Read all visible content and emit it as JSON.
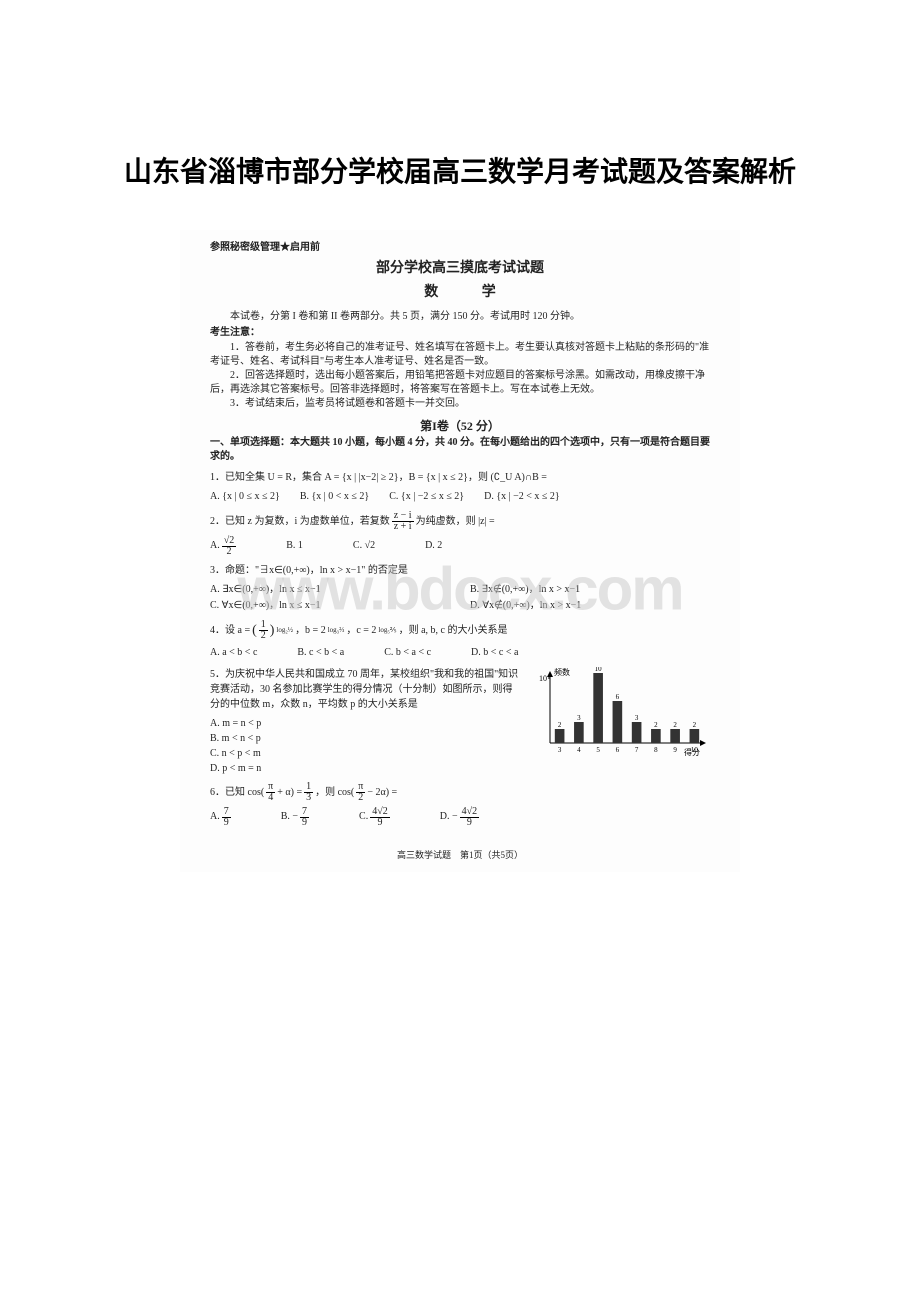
{
  "page_title": "山东省淄博市部分学校届高三数学月考试题及答案解析",
  "watermark": "www.bdocx.com",
  "exam": {
    "secret": "参照秘密级管理★启用前",
    "title": "部分学校高三摸底考试试题",
    "subject": "数  学",
    "intro": "本试卷，分第 I 卷和第 II 卷两部分。共 5 页，满分 150 分。考试用时 120 分钟。",
    "notice_title": "考生注意：",
    "notices": [
      "1．答卷前，考生务必将自己的准考证号、姓名填写在答题卡上。考生要认真核对答题卡上粘贴的条形码的\"准考证号、姓名、考试科目\"与考生本人准考证号、姓名是否一致。",
      "2．回答选择题时，选出每小题答案后，用铅笔把答题卡对应题目的答案标号涂黑。如需改动，用橡皮擦干净后，再选涂其它答案标号。回答非选择题时，将答案写在答题卡上。写在本试卷上无效。",
      "3．考试结束后，监考员将试题卷和答题卡一并交回。"
    ],
    "section1_title": "第I卷（52 分）",
    "section1_desc": "一、单项选择题：本大题共 10 小题，每小题 4 分，共 40 分。在每小题给出的四个选项中，只有一项是符合题目要求的。",
    "q1": {
      "text": "1．已知全集 U = R，集合 A = {x | |x−2| ≥ 2}，B = {x | x ≤ 2}，则 (∁_U A)∩B =",
      "opts": [
        "A. {x | 0 ≤ x ≤ 2}",
        "B. {x | 0 < x ≤ 2}",
        "C. {x | −2 ≤ x ≤ 2}",
        "D. {x | −2 < x ≤ 2}"
      ]
    },
    "q2": {
      "text": "2．已知 z 为复数，i 为虚数单位，若复数",
      "text_suffix": "为纯虚数，则 |z| =",
      "frac_num": "z − i",
      "frac_den": "z + i",
      "opts_a": "A.",
      "a_num": "√2",
      "a_den": "2",
      "opts_b": "B. 1",
      "opts_c": "C. √2",
      "opts_d": "D. 2"
    },
    "q3": {
      "text": "3．命题：\"∃x∈(0,+∞)，ln x > x−1\" 的否定是",
      "opts": [
        "A. ∃x∈(0,+∞)，ln x ≤ x−1",
        "B. ∃x∉(0,+∞)，ln x > x−1",
        "C. ∀x∈(0,+∞)，ln x ≤ x−1",
        "D. ∀x∉(0,+∞)，ln x > x−1"
      ]
    },
    "q4": {
      "text_pre": "4．设 a =",
      "a_base_num": "1",
      "a_base_den": "2",
      "a_exp": "log₂½",
      "text_b": "，b = 2",
      "b_exp": "log₃⅔",
      "text_c": "，c = 2",
      "c_exp": "log₅⅖",
      "text_suffix": "，则 a, b, c 的大小关系是",
      "opts": [
        "A. a < b < c",
        "B. c < b < a",
        "C. b < a < c",
        "D. b < c < a"
      ]
    },
    "q5": {
      "text": "5．为庆祝中华人民共和国成立 70 周年，某校组织\"我和我的祖国\"知识竞赛活动，30 名参加比赛学生的得分情况（十分制）如图所示，则得分的中位数 m，众数 n，平均数 p 的大小关系是",
      "opts": [
        "A. m = n < p",
        "B. m < n < p",
        "C. n < p < m",
        "D. p < m = n"
      ],
      "chart": {
        "type": "bar",
        "xlabel": "得分",
        "ylabel": "频数",
        "categories": [
          3,
          4,
          5,
          6,
          7,
          8,
          9,
          10
        ],
        "values": [
          2,
          3,
          10,
          6,
          3,
          2,
          2,
          2
        ],
        "bar_color": "#333333",
        "axis_color": "#000000",
        "ymax": 10,
        "bar_width": 0.5
      }
    },
    "q6": {
      "text_pre": "6．已知 cos(",
      "text_mid1": " + α) = ",
      "text_mid2": "，则 cos(",
      "text_mid3": " − 2α) =",
      "pi4_num": "π",
      "pi4_den": "4",
      "onethird_num": "1",
      "onethird_den": "3",
      "pi2_num": "π",
      "pi2_den": "2",
      "opts_a": "A.",
      "a_num": "7",
      "a_den": "9",
      "opts_b": "B. −",
      "b_num": "7",
      "b_den": "9",
      "opts_c": "C.",
      "c_num": "4√2",
      "c_den": "9",
      "opts_d": "D. −",
      "d_num": "4√2",
      "d_den": "9"
    },
    "footer": "高三数学试题　第1页（共5页）"
  }
}
